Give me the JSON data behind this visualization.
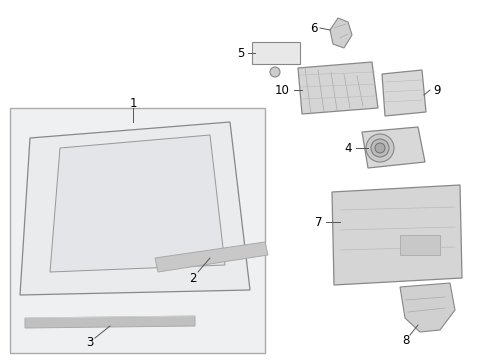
{
  "bg_color": "#ffffff",
  "line_color": "#888888",
  "text_color": "#000000",
  "fill_light": "#f0f0f0",
  "fill_box": "#e8eaed",
  "label_fs": 8.5
}
